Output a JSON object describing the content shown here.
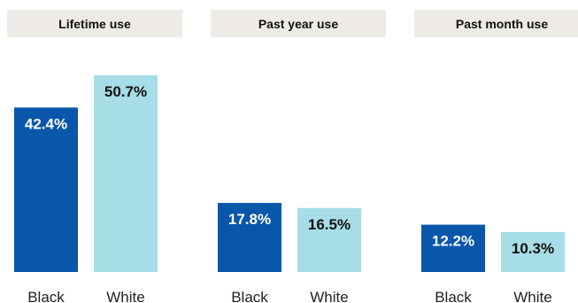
{
  "colors": {
    "black_bar": "#0a56ab",
    "white_bar": "#a6dde6",
    "header_bg": "#eeebe7"
  },
  "chart_data": {
    "type": "bar",
    "panels": [
      {
        "title": "Lifetime use",
        "categories": [
          "Black",
          "White"
        ],
        "values": [
          42.4,
          50.7
        ],
        "value_labels": [
          "42.4%",
          "50.7%"
        ]
      },
      {
        "title": "Past year use",
        "categories": [
          "Black",
          "White"
        ],
        "values": [
          17.8,
          16.5
        ],
        "value_labels": [
          "17.8%",
          "16.5%"
        ]
      },
      {
        "title": "Past month use",
        "categories": [
          "Black",
          "White"
        ],
        "values": [
          12.2,
          10.3
        ],
        "value_labels": [
          "12.2%",
          "10.3%"
        ]
      }
    ]
  }
}
